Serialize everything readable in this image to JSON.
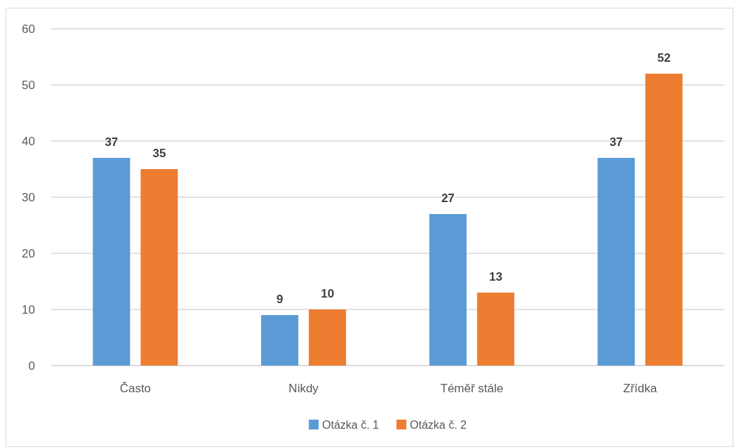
{
  "chart_data": {
    "type": "bar",
    "categories": [
      "Často",
      "Nikdy",
      "Téměř stále",
      "Zřídka"
    ],
    "series": [
      {
        "name": "Otázka č. 1",
        "color": "#5b9bd5",
        "values": [
          37,
          9,
          27,
          37
        ]
      },
      {
        "name": "Otázka č. 2",
        "color": "#ed7d31",
        "values": [
          35,
          10,
          13,
          52
        ]
      }
    ],
    "ylim": [
      0,
      60
    ],
    "yticks": [
      0,
      10,
      20,
      30,
      40,
      50,
      60
    ],
    "grid": "y",
    "legend": "bottom",
    "data_labels": true
  }
}
